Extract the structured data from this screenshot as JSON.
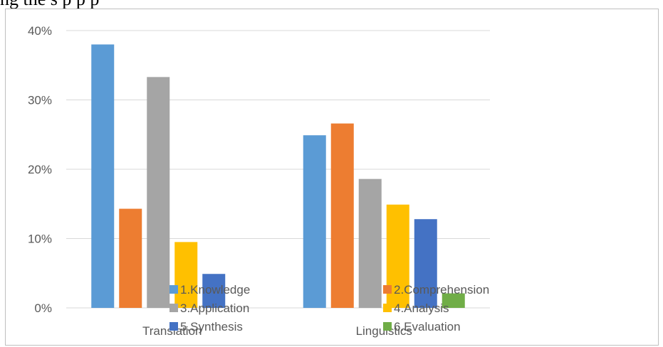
{
  "header_fragment": "ng         the           s            p            p                 p",
  "chart_data": {
    "type": "bar",
    "categories": [
      "Translation",
      "Linguistics"
    ],
    "series": [
      {
        "name": "1.Knowledge",
        "values": [
          38.0,
          24.9
        ]
      },
      {
        "name": "2.Comprehension",
        "values": [
          14.3,
          26.6
        ]
      },
      {
        "name": "3.Application",
        "values": [
          33.3,
          18.6
        ]
      },
      {
        "name": "4.Analysis",
        "values": [
          9.5,
          14.9
        ]
      },
      {
        "name": "5.Synthesis",
        "values": [
          4.9,
          12.8
        ]
      },
      {
        "name": "6.Evaluation",
        "values": [
          0,
          2.1
        ]
      }
    ],
    "colors": [
      "#5b9bd5",
      "#ed7d31",
      "#a5a5a5",
      "#ffc000",
      "#4472c4",
      "#70ad47"
    ],
    "yticks": [
      "0%",
      "10%",
      "20%",
      "30%",
      "40%"
    ],
    "ylim": [
      0,
      40
    ],
    "grid": true,
    "legend_position": "bottom-overlapping"
  }
}
